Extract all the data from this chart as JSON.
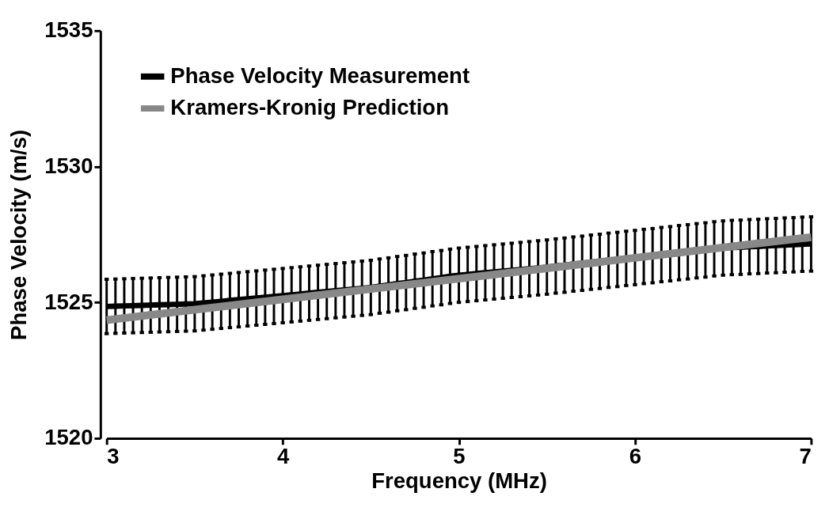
{
  "chart_data": {
    "type": "line",
    "xlabel": "Frequency (MHz)",
    "ylabel": "Phase Velocity (m/s)",
    "x": [
      3.0,
      3.05,
      3.1,
      3.15,
      3.2,
      3.25,
      3.3,
      3.35,
      3.4,
      3.45,
      3.5,
      3.55,
      3.6,
      3.65,
      3.7,
      3.75,
      3.8,
      3.85,
      3.9,
      3.95,
      4.0,
      4.05,
      4.1,
      4.15,
      4.2,
      4.25,
      4.3,
      4.35,
      4.4,
      4.45,
      4.5,
      4.55,
      4.6,
      4.65,
      4.7,
      4.75,
      4.8,
      4.85,
      4.9,
      4.95,
      5.0,
      5.05,
      5.1,
      5.15,
      5.2,
      5.25,
      5.3,
      5.35,
      5.4,
      5.45,
      5.5,
      5.55,
      5.6,
      5.65,
      5.7,
      5.75,
      5.8,
      5.85,
      5.9,
      5.95,
      6.0,
      6.05,
      6.1,
      6.15,
      6.2,
      6.25,
      6.3,
      6.35,
      6.4,
      6.45,
      6.5,
      6.55,
      6.6,
      6.65,
      6.7,
      6.75,
      6.8,
      6.85,
      6.9,
      6.95,
      7.0
    ],
    "series": [
      {
        "name": "Phase Velocity Measurement",
        "color": "#000000",
        "values": [
          1524.85,
          1524.86,
          1524.87,
          1524.88,
          1524.89,
          1524.9,
          1524.91,
          1524.92,
          1524.93,
          1524.94,
          1524.95,
          1524.98,
          1525.01,
          1525.04,
          1525.07,
          1525.1,
          1525.13,
          1525.16,
          1525.19,
          1525.22,
          1525.25,
          1525.28,
          1525.31,
          1525.34,
          1525.37,
          1525.4,
          1525.43,
          1525.46,
          1525.49,
          1525.52,
          1525.55,
          1525.6,
          1525.64,
          1525.69,
          1525.73,
          1525.78,
          1525.82,
          1525.87,
          1525.91,
          1525.96,
          1526.0,
          1526.03,
          1526.06,
          1526.09,
          1526.12,
          1526.15,
          1526.18,
          1526.21,
          1526.24,
          1526.27,
          1526.3,
          1526.34,
          1526.37,
          1526.41,
          1526.44,
          1526.48,
          1526.51,
          1526.55,
          1526.58,
          1526.62,
          1526.65,
          1526.69,
          1526.72,
          1526.76,
          1526.79,
          1526.83,
          1526.86,
          1526.9,
          1526.93,
          1526.97,
          1527.0,
          1527.02,
          1527.03,
          1527.05,
          1527.06,
          1527.08,
          1527.09,
          1527.11,
          1527.12,
          1527.14,
          1527.15
        ],
        "errors": [
          1.0,
          1.0,
          1.0,
          1.0,
          1.0,
          1.0,
          1.0,
          1.0,
          1.0,
          1.0,
          1.0,
          1.0,
          1.0,
          1.0,
          1.0,
          1.0,
          1.0,
          1.0,
          1.0,
          1.0,
          1.0,
          1.0,
          1.0,
          1.0,
          1.0,
          1.0,
          1.0,
          1.0,
          1.0,
          1.0,
          1.0,
          1.0,
          1.0,
          1.0,
          1.0,
          1.0,
          1.0,
          1.0,
          1.0,
          1.0,
          1.0,
          1.0,
          1.0,
          1.0,
          1.0,
          1.0,
          1.0,
          1.0,
          1.0,
          1.0,
          1.0,
          1.0,
          1.0,
          1.0,
          1.0,
          1.0,
          1.0,
          1.0,
          1.0,
          1.0,
          1.0,
          1.0,
          1.0,
          1.0,
          1.0,
          1.0,
          1.0,
          1.0,
          1.0,
          1.0,
          1.0,
          1.0,
          1.0,
          1.0,
          1.0,
          1.0,
          1.0,
          1.0,
          1.0,
          1.0,
          1.0
        ]
      },
      {
        "name": "Kramers-Kronig Prediction",
        "color": "#888888",
        "x": [
          3.0,
          7.0
        ],
        "values": [
          1524.35,
          1527.4
        ]
      }
    ],
    "xlim": [
      3,
      7
    ],
    "ylim": [
      1520,
      1535
    ],
    "xticks": [
      3,
      4,
      5,
      6,
      7
    ],
    "yticks": [
      1520,
      1525,
      1530,
      1535
    ],
    "grid": false,
    "legend": "top left",
    "marker": "none",
    "line_style": "solid"
  }
}
